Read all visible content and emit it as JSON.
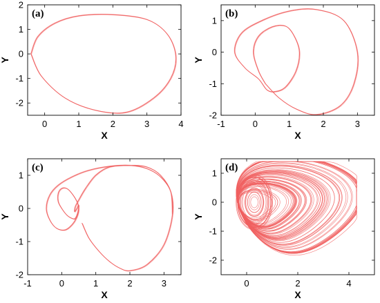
{
  "colors": {
    "curve": "#f06060",
    "axis": "#000000",
    "background": "#ffffff"
  },
  "chart_data": [
    {
      "type": "line",
      "panel_label": "(a)",
      "xlabel": "X",
      "ylabel": "Y",
      "xlim": [
        -0.5,
        4
      ],
      "ylim": [
        -2.5,
        2
      ],
      "xticks": [
        0,
        1,
        2,
        3,
        4
      ],
      "yticks": [
        -2,
        -1,
        0,
        1,
        2
      ],
      "grid": false,
      "attractor": "period-1",
      "series": [
        {
          "x": [
            -0.4,
            -0.2,
            0.3,
            1.0,
            2.0,
            3.0,
            3.6,
            3.85,
            3.7,
            3.2,
            2.4,
            1.5,
            0.6,
            -0.1,
            -0.4
          ],
          "y": [
            0.0,
            0.7,
            1.25,
            1.55,
            1.6,
            1.4,
            0.8,
            -0.1,
            -1.0,
            -1.8,
            -2.38,
            -2.3,
            -1.8,
            -0.9,
            0.0
          ]
        }
      ]
    },
    {
      "type": "line",
      "panel_label": "(b)",
      "xlabel": "X",
      "ylabel": "Y",
      "xlim": [
        -1,
        3.5
      ],
      "ylim": [
        -2,
        1.5
      ],
      "xticks": [
        -1,
        0,
        1,
        2,
        3
      ],
      "yticks": [
        -2,
        -1,
        0,
        1
      ],
      "grid": false,
      "attractor": "period-2",
      "series": [
        {
          "x": [
            0.3,
            0.1,
            -0.05,
            0.1,
            0.5,
            0.9,
            1.15,
            1.3,
            1.2,
            0.9,
            0.6,
            0.35,
            0.1,
            -0.3,
            -0.6,
            -0.4,
            0.2,
            1.0,
            1.8,
            2.6,
            3.0,
            2.9,
            2.5,
            1.8,
            1.2,
            0.7,
            0.3
          ],
          "y": [
            -1.0,
            -0.6,
            0.0,
            0.5,
            0.8,
            0.82,
            0.5,
            0.0,
            -0.6,
            -1.1,
            -1.25,
            -1.2,
            -0.85,
            -0.5,
            0.0,
            0.6,
            1.0,
            1.3,
            1.35,
            1.0,
            0.0,
            -1.0,
            -1.7,
            -1.98,
            -1.8,
            -1.45,
            -1.0
          ]
        }
      ]
    },
    {
      "type": "line",
      "panel_label": "(c)",
      "xlabel": "X",
      "ylabel": "Y",
      "xlim": [
        -1,
        3.5
      ],
      "ylim": [
        -2,
        1.5
      ],
      "xticks": [
        -1,
        0,
        1,
        2,
        3
      ],
      "yticks": [
        -2,
        -1,
        0,
        1
      ],
      "grid": false,
      "attractor": "period-3",
      "series": [
        {
          "x": [
            0.6,
            0.8,
            1.1,
            1.4,
            1.7,
            2.0,
            2.5,
            3.0,
            3.25,
            3.2,
            2.9,
            2.5,
            2.0,
            1.4,
            1.0,
            0.7,
            0.5,
            0.4,
            0.38,
            0.45,
            0.5,
            0.48,
            0.4,
            0.3,
            0.15,
            0.0,
            -0.1,
            -0.1,
            0.0,
            0.15,
            0.3,
            0.45,
            0.5,
            0.45,
            0.3,
            0.1,
            -0.15,
            -0.35,
            -0.45,
            -0.35,
            -0.1,
            0.3,
            0.8,
            1.4,
            2.0,
            2.5,
            2.9,
            3.2,
            3.25
          ],
          "y": [
            -0.45,
            -0.9,
            -1.3,
            -1.6,
            -1.8,
            -1.88,
            -1.7,
            -1.1,
            -0.2,
            0.5,
            1.0,
            1.25,
            1.3,
            1.25,
            1.0,
            0.6,
            0.25,
            0.05,
            -0.1,
            0.0,
            0.1,
            -0.1,
            -0.3,
            -0.3,
            -0.2,
            0.0,
            0.2,
            0.45,
            0.6,
            0.6,
            0.45,
            0.2,
            0.0,
            -0.25,
            -0.5,
            -0.65,
            -0.6,
            -0.35,
            0.0,
            0.4,
            0.7,
            0.95,
            1.15,
            1.27,
            1.3,
            1.2,
            0.95,
            0.5,
            -0.2
          ]
        }
      ]
    },
    {
      "type": "line",
      "panel_label": "(d)",
      "xlabel": "X",
      "ylabel": "Y",
      "xlim": [
        -1,
        5
      ],
      "ylim": [
        -2.5,
        1.5
      ],
      "xticks": [
        0,
        2,
        4
      ],
      "yticks": [
        -2,
        -1,
        0,
        1
      ],
      "grid": false,
      "attractor": "chaotic",
      "series": [
        {
          "x_extent": [
            -0.8,
            4.3
          ],
          "y_extent": [
            -2.1,
            1.4
          ],
          "x_center": 0.5,
          "y_center": -0.1
        }
      ]
    }
  ]
}
